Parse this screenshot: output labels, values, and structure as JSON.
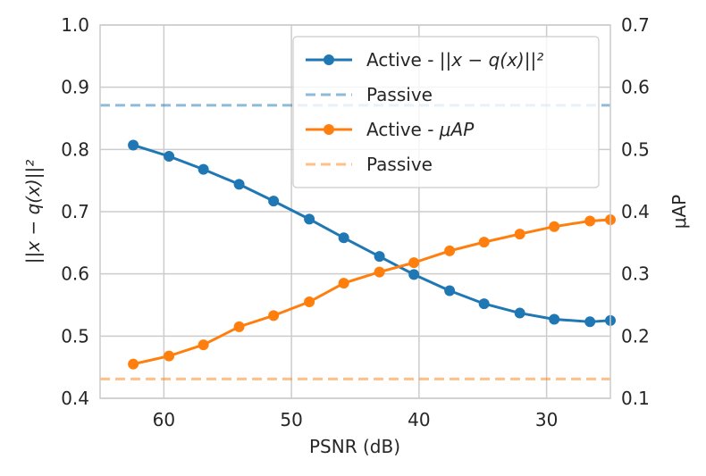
{
  "chart_data": {
    "type": "line",
    "x_axis": {
      "label": "PSNR (dB)",
      "lim": [
        65,
        25
      ],
      "ticks": [
        60,
        50,
        40,
        30
      ],
      "tick_labels": [
        "60",
        "50",
        "40",
        "30"
      ]
    },
    "y_left": {
      "label": "||x − q(x)||²",
      "lim": [
        0.4,
        1.0
      ],
      "ticks": [
        0.4,
        0.5,
        0.6,
        0.7,
        0.8,
        0.9,
        1.0
      ],
      "tick_labels": [
        "0.4",
        "0.5",
        "0.6",
        "0.7",
        "0.8",
        "0.9",
        "1.0"
      ]
    },
    "y_right": {
      "label": "μAP",
      "lim": [
        0.1,
        0.7
      ],
      "ticks": [
        0.1,
        0.2,
        0.3,
        0.4,
        0.5,
        0.6,
        0.7
      ],
      "tick_labels": [
        "0.1",
        "0.2",
        "0.3",
        "0.4",
        "0.5",
        "0.6",
        "0.7"
      ]
    },
    "grid": true,
    "legend_location": "top-right",
    "series": [
      {
        "name": "Active - ||x − q(x)||²",
        "axis": "left",
        "style": "line-marker",
        "color": "#1f77b4",
        "x": [
          62.4,
          59.6,
          56.9,
          54.1,
          51.4,
          48.6,
          45.9,
          43.1,
          40.4,
          37.6,
          34.9,
          32.1,
          29.4,
          26.6,
          25.0
        ],
        "y": [
          0.807,
          0.789,
          0.768,
          0.744,
          0.717,
          0.688,
          0.658,
          0.628,
          0.599,
          0.573,
          0.552,
          0.537,
          0.527,
          0.523,
          0.525
        ]
      },
      {
        "name": "Passive",
        "axis": "left",
        "style": "dashed",
        "color": "#1f77b4",
        "value": 0.871
      },
      {
        "name": "Active - μAP",
        "axis": "right",
        "style": "line-marker",
        "color": "#ff7f0e",
        "x": [
          62.4,
          59.6,
          56.9,
          54.1,
          51.4,
          48.6,
          45.9,
          43.1,
          40.4,
          37.6,
          34.9,
          32.1,
          29.4,
          26.6,
          25.0
        ],
        "y": [
          0.155,
          0.168,
          0.186,
          0.215,
          0.233,
          0.255,
          0.285,
          0.303,
          0.318,
          0.337,
          0.351,
          0.364,
          0.376,
          0.385,
          0.387
        ]
      },
      {
        "name": "Passive",
        "axis": "right",
        "style": "dashed",
        "color": "#ff7f0e",
        "value": 0.131
      }
    ],
    "legend": {
      "entries": [
        {
          "label_main": "Active - ",
          "label_math": "||x − q(x)||²",
          "color": "#1f77b4",
          "style": "line-marker"
        },
        {
          "label_main": "Passive",
          "label_math": "",
          "color": "#1f77b4",
          "style": "dashed"
        },
        {
          "label_main": "Active - ",
          "label_math": "μAP",
          "color": "#ff7f0e",
          "style": "line-marker"
        },
        {
          "label_main": "Passive",
          "label_math": "",
          "color": "#ff7f0e",
          "style": "dashed"
        }
      ]
    }
  }
}
